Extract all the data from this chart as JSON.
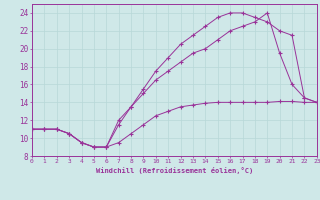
{
  "background_color": "#cfe8e8",
  "line_color": "#993399",
  "grid_color": "#b8d8d8",
  "xlabel": "Windchill (Refroidissement éolien,°C)",
  "tick_color": "#993399",
  "ylim": [
    8,
    25
  ],
  "xlim": [
    0,
    23
  ],
  "yticks": [
    8,
    10,
    12,
    14,
    16,
    18,
    20,
    22,
    24
  ],
  "xticks": [
    0,
    1,
    2,
    3,
    4,
    5,
    6,
    7,
    8,
    9,
    10,
    11,
    12,
    13,
    14,
    15,
    16,
    17,
    18,
    19,
    20,
    21,
    22,
    23
  ],
  "line1_x": [
    0,
    1,
    2,
    3,
    4,
    5,
    6,
    7,
    8,
    9,
    10,
    11,
    12,
    13,
    14,
    15,
    16,
    17,
    18,
    19,
    20,
    21,
    22,
    23
  ],
  "line1_y": [
    11,
    11,
    11,
    10.5,
    9.5,
    9,
    9,
    9.5,
    10.5,
    11.5,
    12.5,
    13.0,
    13.5,
    13.7,
    13.9,
    14.0,
    14.0,
    14.0,
    14.0,
    14.0,
    14.1,
    14.1,
    14.0,
    14.0
  ],
  "line2_x": [
    0,
    1,
    2,
    3,
    4,
    5,
    6,
    7,
    8,
    9,
    10,
    11,
    12,
    13,
    14,
    15,
    16,
    17,
    18,
    19,
    20,
    21,
    22,
    23
  ],
  "line2_y": [
    11,
    11,
    11,
    10.5,
    9.5,
    9,
    9,
    11.5,
    13.5,
    15.0,
    16.5,
    17.5,
    18.5,
    19.5,
    20.0,
    21.0,
    22.0,
    22.5,
    23.0,
    24.0,
    19.5,
    16.0,
    14.5,
    14.0
  ],
  "line3_x": [
    0,
    1,
    2,
    3,
    4,
    5,
    6,
    7,
    8,
    9,
    10,
    11,
    12,
    13,
    14,
    15,
    16,
    17,
    18,
    19,
    20,
    21,
    22,
    23
  ],
  "line3_y": [
    11,
    11,
    11,
    10.5,
    9.5,
    9,
    9,
    12.0,
    13.5,
    15.5,
    17.5,
    19.0,
    20.5,
    21.5,
    22.5,
    23.5,
    24.0,
    24.0,
    23.5,
    23.0,
    22.0,
    21.5,
    14.5,
    14.0
  ]
}
